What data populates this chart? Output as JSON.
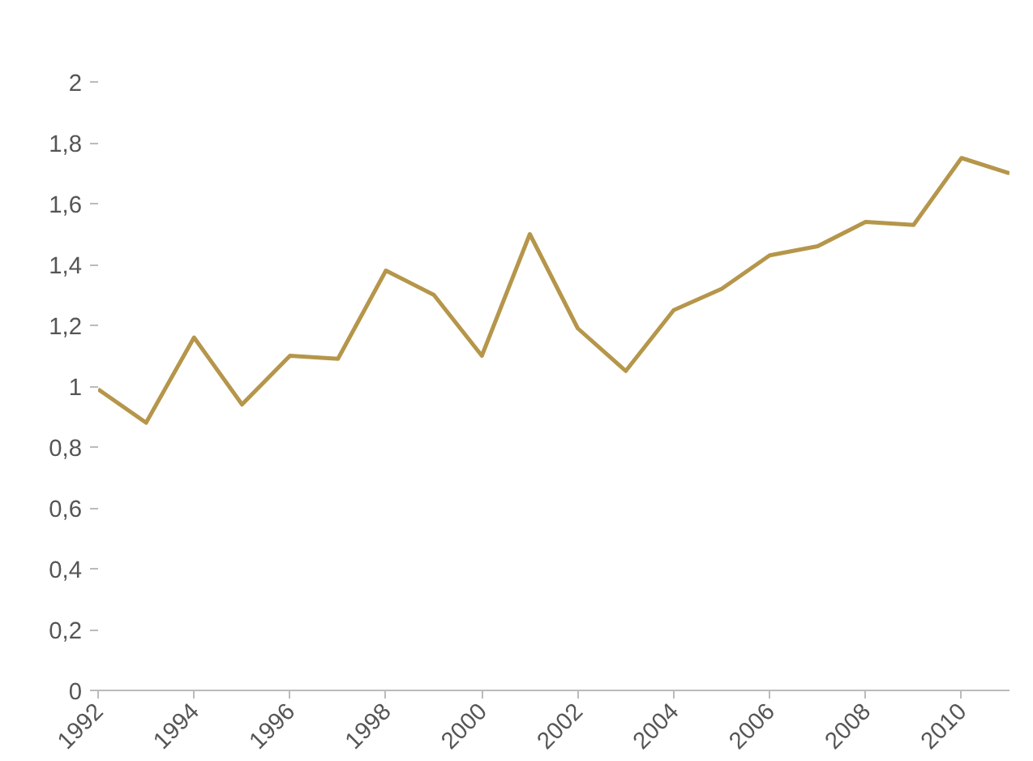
{
  "chart_data": {
    "type": "line",
    "x": [
      1992,
      1993,
      1994,
      1995,
      1996,
      1997,
      1998,
      1999,
      2000,
      2001,
      2002,
      2003,
      2004,
      2005,
      2006,
      2007,
      2008,
      2009,
      2010,
      2011
    ],
    "series": [
      {
        "color": "#b5964a",
        "values": [
          0.99,
          0.88,
          1.16,
          0.94,
          1.1,
          1.09,
          1.38,
          1.3,
          1.1,
          1.5,
          1.19,
          1.05,
          1.25,
          1.32,
          1.43,
          1.46,
          1.54,
          1.53,
          1.75,
          1.7
        ]
      }
    ],
    "xlim": [
      1992,
      2011
    ],
    "xticks": [
      1992,
      1994,
      1996,
      1998,
      2000,
      2002,
      2004,
      2006,
      2008,
      2010
    ],
    "ylim": [
      0,
      2
    ],
    "yticks": [
      0,
      {
        "value": 0.2,
        "label": "0,2"
      },
      {
        "value": 0.4,
        "label": "0,4"
      },
      {
        "value": 0.6,
        "label": "0,6"
      },
      {
        "value": 0.8,
        "label": "0,8"
      },
      1,
      {
        "value": 1.2,
        "label": "1,2"
      },
      {
        "value": 1.4,
        "label": "1,4"
      },
      {
        "value": 1.6,
        "label": "1,6"
      },
      {
        "value": 1.8,
        "label": "1,8"
      },
      2
    ],
    "marker": "none",
    "line_style": "solid"
  }
}
